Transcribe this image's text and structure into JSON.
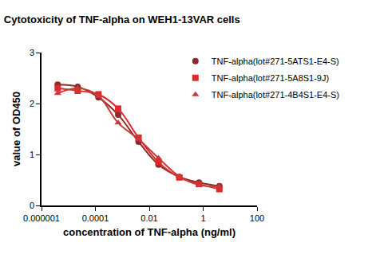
{
  "chart_data": {
    "type": "scatter",
    "title": "Cytotoxicity of TNF-alpha on WEH1-13VAR cells",
    "x_label": "concentration of TNF-alpha (ng/ml)",
    "y_label": "value of OD450",
    "x": [
      4e-06,
      2.2e-05,
      0.00013,
      0.0007,
      0.004,
      0.022,
      0.13,
      0.7,
      4
    ],
    "series": [
      {
        "name": "TNF-alpha(lot#271-5ATS1-E4-S)",
        "color": "#8b2b2b",
        "marker": "circle",
        "line_style": "solid",
        "values": [
          2.37,
          2.33,
          2.12,
          1.78,
          1.25,
          0.8,
          0.56,
          0.45,
          0.38
        ]
      },
      {
        "name": "TNF-alpha(lot#271-5A8S1-9J)",
        "color": "#e0292c",
        "marker": "square",
        "line_style": "solid",
        "values": [
          2.3,
          2.25,
          2.18,
          1.9,
          1.33,
          0.85,
          0.55,
          0.42,
          0.32
        ]
      },
      {
        "name": "TNF-alpha(lot#271-4B4S1-E4-S)",
        "color": "#c73a3a",
        "marker": "triangle-up",
        "line_style": "solid",
        "values": [
          2.2,
          2.3,
          2.15,
          1.62,
          1.3,
          0.93,
          0.57,
          0.4,
          0.37
        ]
      }
    ],
    "log": "x",
    "xlim": [
      1e-06,
      100
    ],
    "xticks": [
      1e-06,
      0.0001,
      0.01,
      1,
      100
    ],
    "ylim": [
      0,
      3
    ],
    "yticks": [
      0,
      1,
      2,
      3
    ],
    "grid": false,
    "legend": "upper right"
  }
}
